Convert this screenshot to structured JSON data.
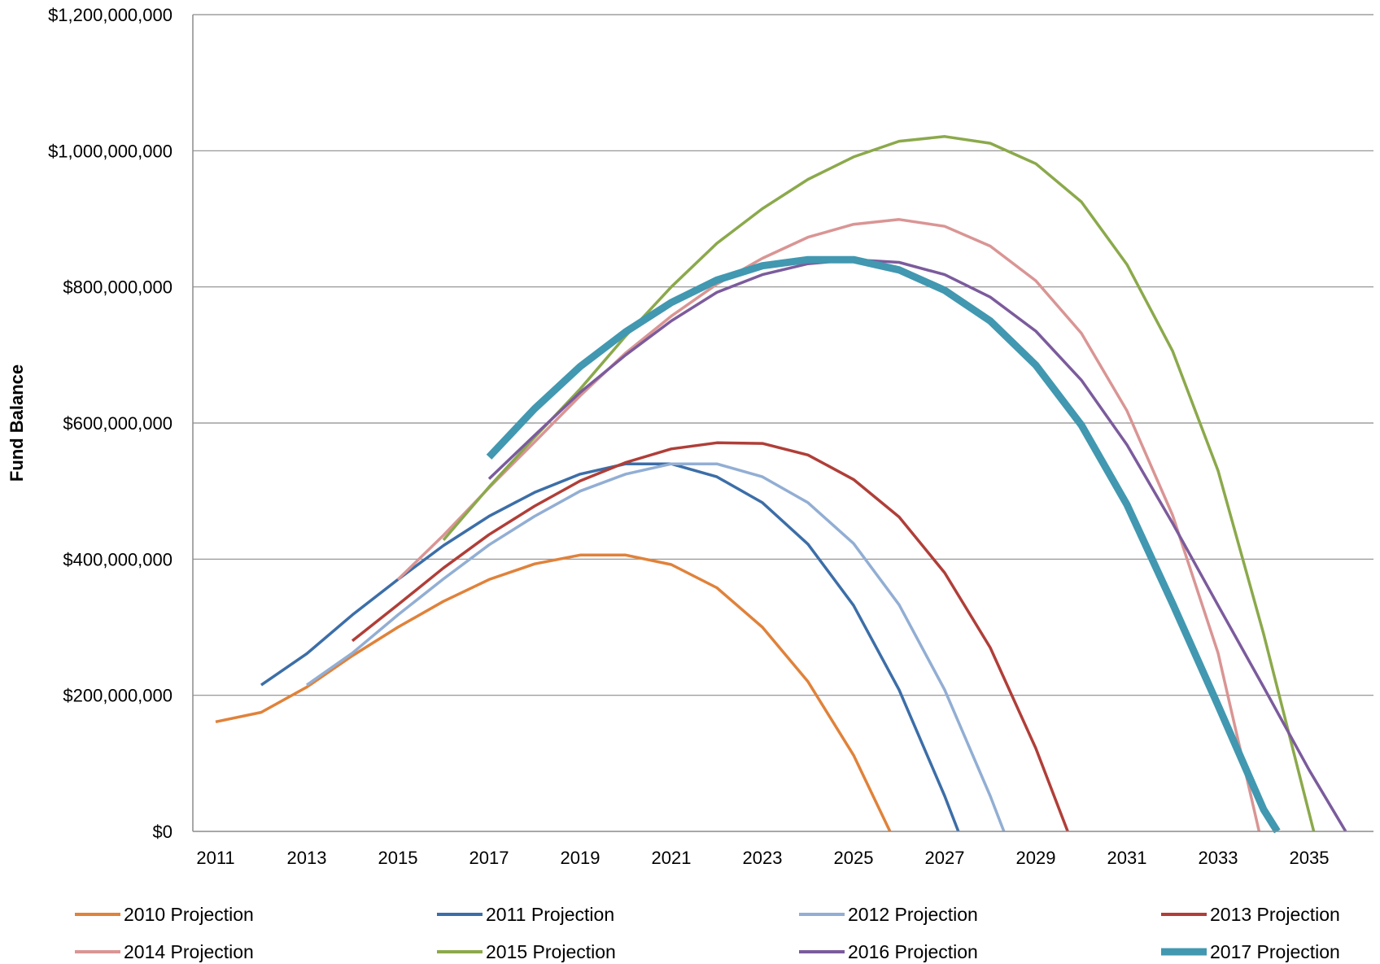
{
  "chart_data": {
    "type": "line",
    "title": "",
    "xlabel": "",
    "ylabel": "Fund Balance",
    "xlim": [
      2010.5,
      2036.5
    ],
    "ylim": [
      0,
      1200000000
    ],
    "x_ticks": [
      2011,
      2013,
      2015,
      2017,
      2019,
      2021,
      2023,
      2025,
      2027,
      2029,
      2031,
      2033,
      2035
    ],
    "x_tick_labels": [
      "2011",
      "2013",
      "2015",
      "2017",
      "2019",
      "2021",
      "2023",
      "2025",
      "2027",
      "2029",
      "2031",
      "2033",
      "2035"
    ],
    "y_ticks": [
      0,
      200000000,
      400000000,
      600000000,
      800000000,
      1000000000,
      1200000000
    ],
    "y_tick_labels": [
      "$0",
      "$200,000,000",
      "$400,000,000",
      "$600,000,000",
      "$800,000,000",
      "$1,000,000,000",
      "$1,200,000,000"
    ],
    "grid": "horizontal",
    "legend_position": "bottom",
    "series": [
      {
        "name": "2010 Projection",
        "color": "#E0823A",
        "width": 3.5,
        "x": [
          2011,
          2012,
          2013,
          2014,
          2015,
          2016,
          2017,
          2018,
          2019,
          2020,
          2021,
          2022,
          2023,
          2024,
          2025,
          2025.8
        ],
        "y": [
          161000000,
          175000000,
          212000000,
          258000000,
          300000000,
          338000000,
          370000000,
          393000000,
          406000000,
          406000000,
          392000000,
          358000000,
          300000000,
          220000000,
          112000000,
          0
        ]
      },
      {
        "name": "2011 Projection",
        "color": "#3C6EA8",
        "width": 3.5,
        "x": [
          2012,
          2013,
          2014,
          2015,
          2016,
          2017,
          2018,
          2019,
          2020,
          2021,
          2022,
          2023,
          2024,
          2025,
          2026,
          2027,
          2027.3
        ],
        "y": [
          215000000,
          261000000,
          318000000,
          370000000,
          420000000,
          463000000,
          498000000,
          525000000,
          540000000,
          540000000,
          521000000,
          483000000,
          422000000,
          332000000,
          208000000,
          52000000,
          0
        ]
      },
      {
        "name": "2012 Projection",
        "color": "#92AED4",
        "width": 3.5,
        "x": [
          2013,
          2014,
          2015,
          2016,
          2017,
          2018,
          2019,
          2020,
          2021,
          2022,
          2023,
          2024,
          2025,
          2026,
          2027,
          2028,
          2028.3
        ],
        "y": [
          215000000,
          262000000,
          318000000,
          371000000,
          421000000,
          463000000,
          500000000,
          525000000,
          540000000,
          540000000,
          521000000,
          483000000,
          423000000,
          333000000,
          208000000,
          52000000,
          0
        ]
      },
      {
        "name": "2013 Projection",
        "color": "#B03E38",
        "width": 3.5,
        "x": [
          2014,
          2015,
          2016,
          2017,
          2018,
          2019,
          2020,
          2021,
          2022,
          2023,
          2024,
          2025,
          2026,
          2027,
          2028,
          2029,
          2029.7
        ],
        "y": [
          280000000,
          333000000,
          387000000,
          436000000,
          478000000,
          515000000,
          542000000,
          562000000,
          571000000,
          570000000,
          553000000,
          517000000,
          462000000,
          380000000,
          270000000,
          122000000,
          0
        ]
      },
      {
        "name": "2014 Projection",
        "color": "#D99594",
        "width": 3.5,
        "x": [
          2015,
          2016,
          2017,
          2018,
          2019,
          2020,
          2021,
          2022,
          2023,
          2024,
          2025,
          2026,
          2027,
          2028,
          2029,
          2030,
          2031,
          2032,
          2033,
          2033.9
        ],
        "y": [
          370000000,
          435000000,
          505000000,
          572000000,
          640000000,
          703000000,
          757000000,
          804000000,
          842000000,
          873000000,
          892000000,
          899000000,
          889000000,
          860000000,
          809000000,
          732000000,
          618000000,
          465000000,
          262000000,
          0
        ]
      },
      {
        "name": "2015 Projection",
        "color": "#8BA94B",
        "width": 3.5,
        "x": [
          2016,
          2017,
          2018,
          2019,
          2020,
          2021,
          2022,
          2023,
          2024,
          2025,
          2026,
          2027,
          2028,
          2029,
          2030,
          2031,
          2032,
          2033,
          2034,
          2035.1
        ],
        "y": [
          428000000,
          506000000,
          579000000,
          650000000,
          728000000,
          800000000,
          864000000,
          915000000,
          958000000,
          991000000,
          1014000000,
          1021000000,
          1011000000,
          981000000,
          925000000,
          833000000,
          706000000,
          530000000,
          290000000,
          0
        ]
      },
      {
        "name": "2016 Projection",
        "color": "#7B5B9C",
        "width": 3.5,
        "x": [
          2017,
          2018,
          2019,
          2020,
          2021,
          2022,
          2023,
          2024,
          2025,
          2026,
          2027,
          2028,
          2029,
          2030,
          2031,
          2032,
          2033,
          2034,
          2035,
          2035.8
        ],
        "y": [
          518000000,
          582000000,
          645000000,
          700000000,
          750000000,
          792000000,
          818000000,
          834000000,
          840000000,
          836000000,
          818000000,
          785000000,
          735000000,
          663000000,
          568000000,
          453000000,
          332000000,
          212000000,
          90000000,
          0
        ]
      },
      {
        "name": "2017 Projection",
        "color": "#4198B0",
        "width": 9,
        "x": [
          2017,
          2018,
          2019,
          2020,
          2021,
          2022,
          2023,
          2024,
          2025,
          2026,
          2027,
          2028,
          2029,
          2030,
          2031,
          2032,
          2033,
          2034,
          2034.3
        ],
        "y": [
          550000000,
          621000000,
          683000000,
          734000000,
          777000000,
          810000000,
          831000000,
          840000000,
          840000000,
          825000000,
          795000000,
          750000000,
          685000000,
          597000000,
          480000000,
          335000000,
          185000000,
          32000000,
          0
        ]
      }
    ]
  }
}
